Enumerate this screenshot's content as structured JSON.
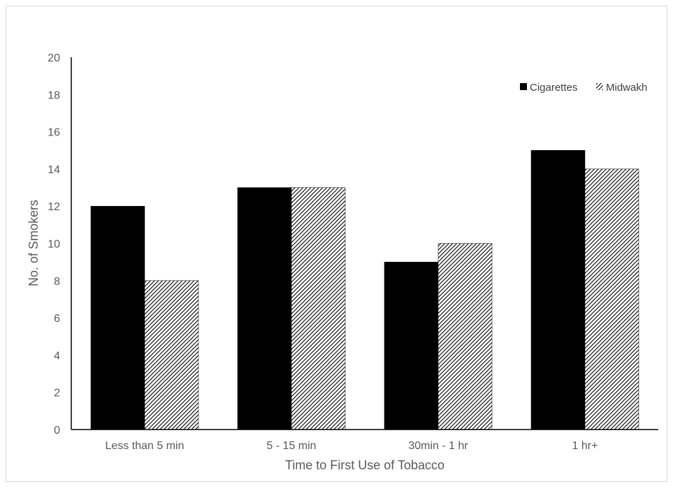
{
  "chart_data": {
    "type": "bar",
    "title": "",
    "xlabel": "Time to First Use of Tobacco",
    "ylabel": "No. of Smokers",
    "categories": [
      "Less than 5 min",
      "5 - 15 min",
      "30min - 1 hr",
      "1 hr+"
    ],
    "series": [
      {
        "name": "Cigarettes",
        "values": [
          12,
          13,
          9,
          15
        ],
        "fill": "#000000",
        "pattern": "solid"
      },
      {
        "name": "Midwakh",
        "values": [
          8,
          13,
          10,
          14
        ],
        "fill": "#000000",
        "pattern": "diagonal-hatch"
      }
    ],
    "ylim": [
      0,
      20
    ],
    "yticks": [
      0,
      2,
      4,
      6,
      8,
      10,
      12,
      14,
      16,
      18,
      20
    ],
    "grid": false,
    "legend_position": "top-right"
  }
}
